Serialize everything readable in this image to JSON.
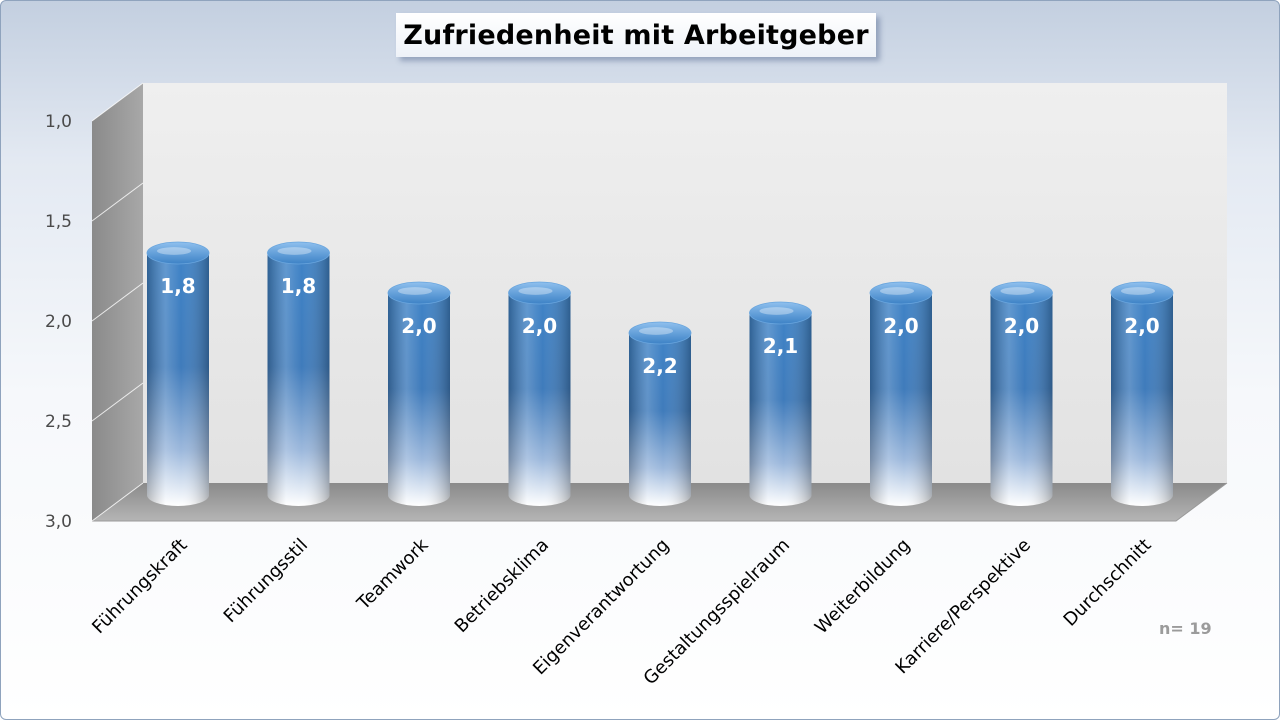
{
  "chart_data": {
    "type": "bar",
    "title": "Zufriedenheit mit Arbeitgeber",
    "categories": [
      "Führungskraft",
      "Führungsstil",
      "Teamwork",
      "Betriebsklima",
      "Eigenverantwortung",
      "Gestaltungsspielraum",
      "Weiterbildung",
      "Karriere/Perspektive",
      "Durchschnitt"
    ],
    "values": [
      1.8,
      1.8,
      2.0,
      2.0,
      2.2,
      2.1,
      2.0,
      2.0,
      2.0
    ],
    "value_labels": [
      "1,8",
      "1,8",
      "2,0",
      "2,0",
      "2,2",
      "2,1",
      "2,0",
      "2,0",
      "2,0"
    ],
    "ylim": [
      1.0,
      3.0
    ],
    "y_inverted": true,
    "y_ticks": [
      "1,0",
      "1,5",
      "2,0",
      "2,5",
      "3,0"
    ],
    "xlabel": "",
    "ylabel": "",
    "grid": false,
    "style": "3d-cylinder",
    "bar_color": "#3f83c7",
    "annotation": "n= 19"
  }
}
